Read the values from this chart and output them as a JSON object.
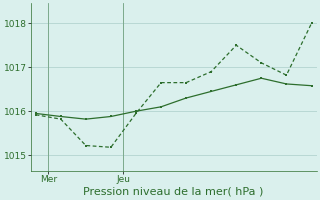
{
  "line1_x": [
    0,
    1,
    2,
    3,
    4,
    5,
    6,
    7,
    8,
    9,
    10,
    11
  ],
  "line1_y": [
    1015.95,
    1015.88,
    1015.82,
    1015.88,
    1016.0,
    1016.1,
    1016.3,
    1016.45,
    1016.6,
    1016.75,
    1016.62,
    1016.58
  ],
  "line2_x": [
    0,
    1,
    2,
    3,
    4,
    5,
    6,
    7,
    8,
    9,
    10,
    11
  ],
  "line2_y": [
    1015.92,
    1015.82,
    1015.22,
    1015.18,
    1015.95,
    1016.65,
    1016.65,
    1016.9,
    1017.5,
    1017.1,
    1016.82,
    1018.0
  ],
  "line_color": "#2d6e2d",
  "bg_color": "#daf0ed",
  "grid_color": "#b8d8d4",
  "yticks": [
    1015,
    1016,
    1017,
    1018
  ],
  "ylim": [
    1014.65,
    1018.45
  ],
  "xlim": [
    -0.2,
    11.2
  ],
  "xlabel": "Pression niveau de la mer( hPa )",
  "mer_x": 0.5,
  "jeu_x": 3.5,
  "tick_fontsize": 6.5,
  "xlabel_fontsize": 8
}
